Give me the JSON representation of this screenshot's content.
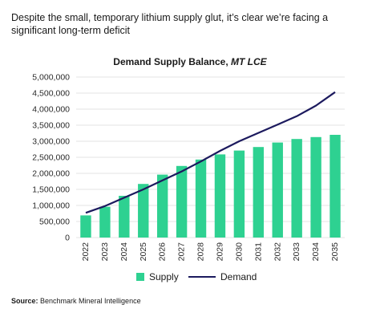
{
  "headline": "Despite the small, temporary lithium supply glut, it’s clear we’re facing a significant long-term deficit",
  "chart_title_main": "Demand Supply Balance, ",
  "chart_title_unit": "MT LCE",
  "source_label": "Source:",
  "source_text": " Benchmark Mineral Intelligence",
  "colors": {
    "supply": "#2ed191",
    "demand": "#1c1a5e",
    "grid": "#e3e3e3"
  },
  "chart_data": {
    "type": "bar",
    "title": "Demand Supply Balance, MT LCE",
    "categories": [
      "2022",
      "2023",
      "2024",
      "2025",
      "2026",
      "2027",
      "2028",
      "2029",
      "2030",
      "2031",
      "2032",
      "2033",
      "2034",
      "2035"
    ],
    "ylim": [
      0,
      5000000
    ],
    "yticks": [
      "0",
      "500,000",
      "1,000,000",
      "1,500,000",
      "2,000,000",
      "2,500,000",
      "3,000,000",
      "3,500,000",
      "4,000,000",
      "4,500,000",
      "5,000,000"
    ],
    "grid": true,
    "legend_position": "bottom",
    "series": [
      {
        "name": "Supply",
        "kind": "bar",
        "values": [
          690000,
          960000,
          1300000,
          1670000,
          1960000,
          2230000,
          2430000,
          2590000,
          2710000,
          2820000,
          2960000,
          3070000,
          3130000,
          3200000
        ]
      },
      {
        "name": "Demand",
        "kind": "line",
        "values": [
          770000,
          980000,
          1240000,
          1500000,
          1780000,
          2060000,
          2370000,
          2700000,
          3000000,
          3260000,
          3520000,
          3780000,
          4110000,
          4530000
        ]
      }
    ]
  }
}
